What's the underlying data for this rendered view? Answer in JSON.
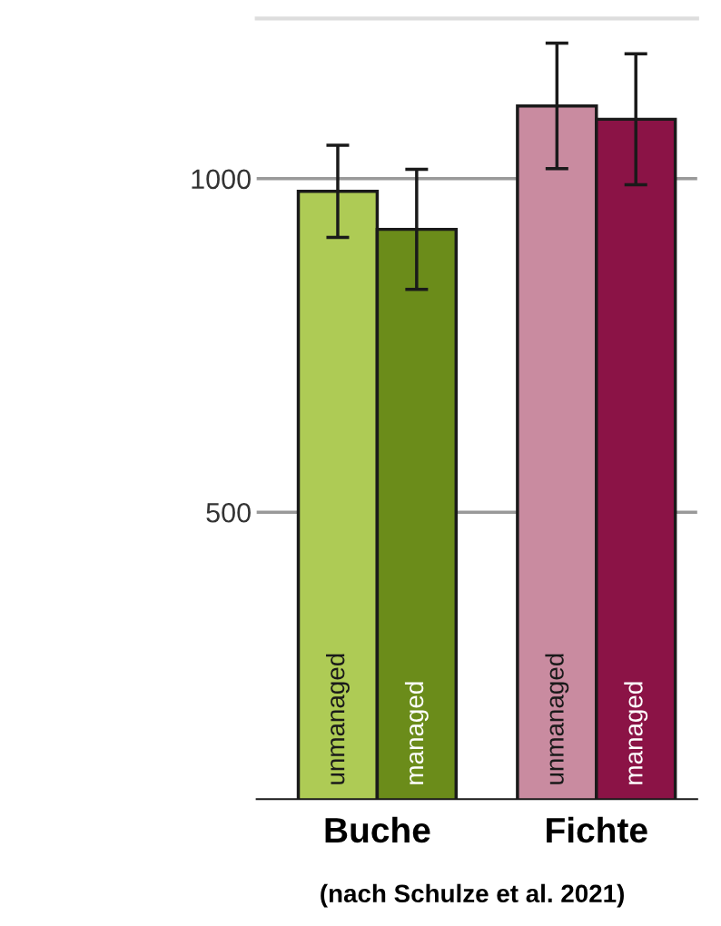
{
  "chart_data": {
    "type": "bar",
    "categories": [
      "Buche",
      "Fichte"
    ],
    "series": [
      {
        "name": "unmanaged",
        "colors": [
          "#aecb55",
          "#c98ba0"
        ],
        "values": [
          981,
          1109
        ],
        "errors": [
          69,
          94
        ]
      },
      {
        "name": "managed",
        "colors": [
          "#6b8c1a",
          "#8b1346"
        ],
        "values": [
          924,
          1089
        ],
        "errors": [
          90,
          98
        ]
      }
    ],
    "ylim": [
      70,
      1240
    ],
    "yticks": [
      500,
      1000
    ],
    "grid": "y",
    "annotations": [
      "(nach Schulze et al. 2021)"
    ]
  }
}
